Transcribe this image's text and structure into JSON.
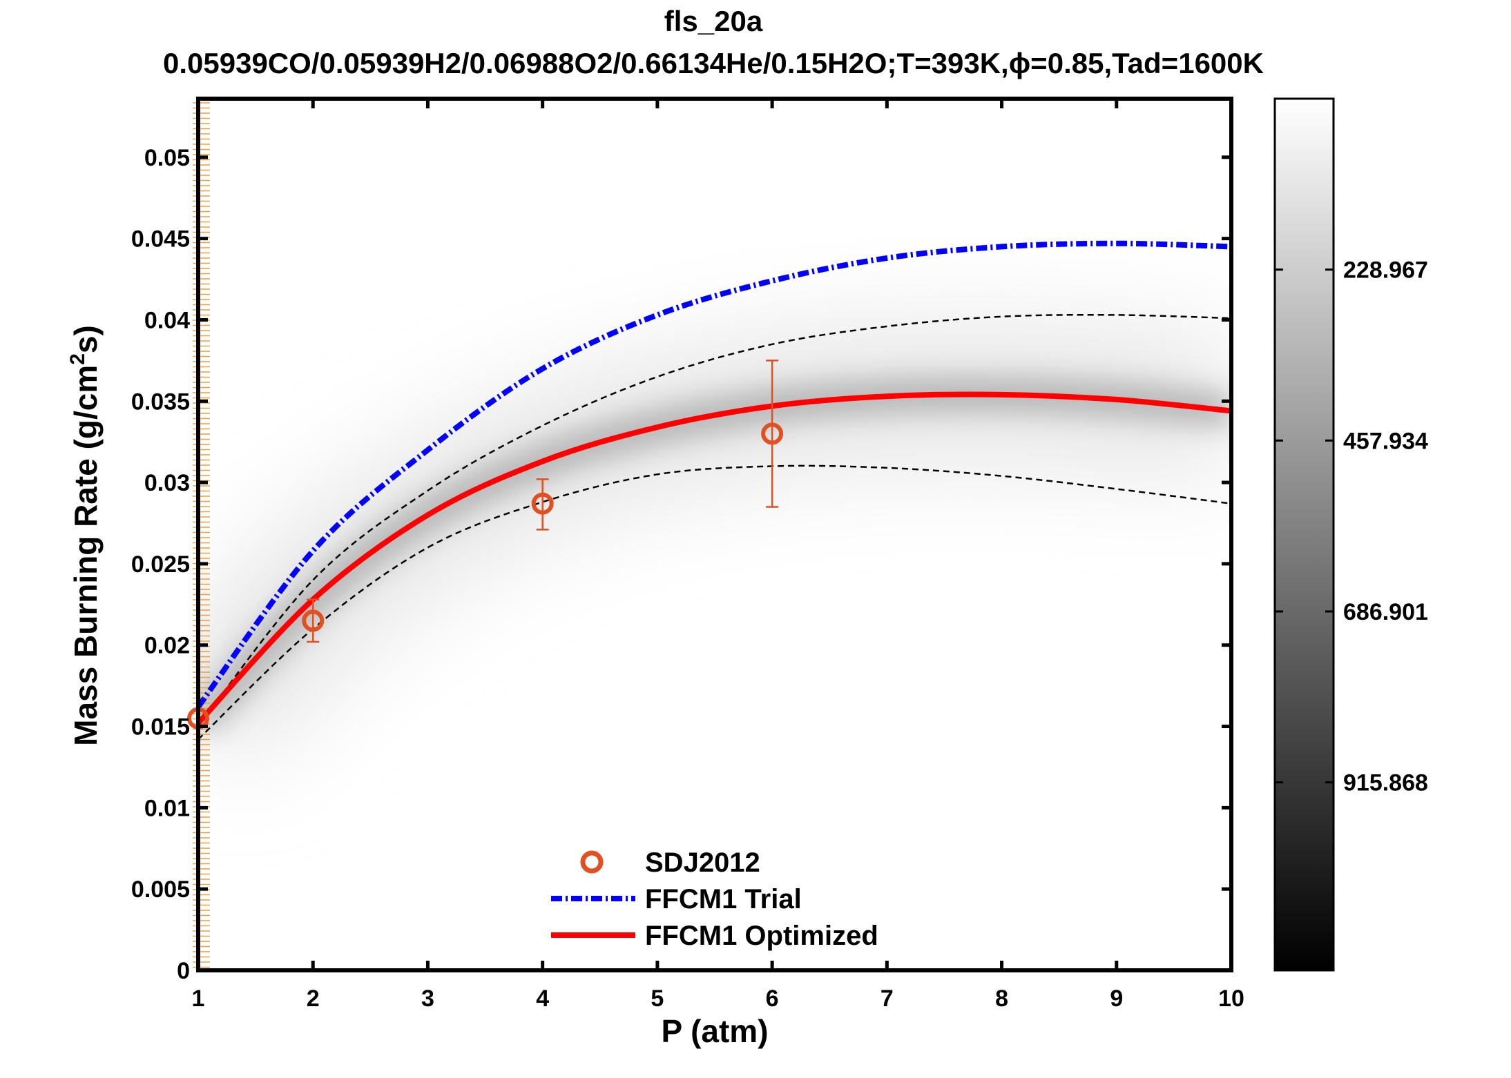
{
  "chart_data": {
    "type": "line",
    "title": "fls_20a",
    "subtitle": "0.05939CO/0.05939H2/0.06988O2/0.66134He/0.15H2O;T=393K,ϕ=0.85,Tad=1600K",
    "xlabel": "P (atm)",
    "ylabel": {
      "main": "Mass Burning Rate (g/cm",
      "sup": "2",
      "tail": "s)"
    },
    "xlim": [
      1,
      10
    ],
    "ylim": [
      0,
      0.0536
    ],
    "xticks": [
      "1",
      "2",
      "3",
      "4",
      "5",
      "6",
      "7",
      "8",
      "9",
      "10"
    ],
    "yticks": [
      {
        "v": 0,
        "label": "0"
      },
      {
        "v": 0.005,
        "label": "0.005"
      },
      {
        "v": 0.01,
        "label": "0.01"
      },
      {
        "v": 0.015,
        "label": "0.015"
      },
      {
        "v": 0.02,
        "label": "0.02"
      },
      {
        "v": 0.025,
        "label": "0.025"
      },
      {
        "v": 0.03,
        "label": "0.03"
      },
      {
        "v": 0.035,
        "label": "0.035"
      },
      {
        "v": 0.04,
        "label": "0.04"
      },
      {
        "v": 0.045,
        "label": "0.045"
      },
      {
        "v": 0.05,
        "label": "0.05"
      }
    ],
    "grid": false,
    "legend_position": "bottom-center",
    "x": [
      1,
      2,
      3,
      4,
      5,
      6,
      7,
      8,
      9,
      10
    ],
    "series": [
      {
        "name": "FFCM1 Trial",
        "color": "#0000ff",
        "style": "dash-dot",
        "values": [
          0.0162,
          0.0258,
          0.032,
          0.037,
          0.0403,
          0.0424,
          0.0438,
          0.0445,
          0.0447,
          0.0445
        ]
      },
      {
        "name": "FFCM1 Optimized",
        "color": "#ff0000",
        "style": "solid",
        "values": [
          0.0152,
          0.0228,
          0.028,
          0.0313,
          0.0334,
          0.0347,
          0.0353,
          0.0354,
          0.0351,
          0.0344
        ]
      },
      {
        "color": "#000000",
        "style": "dashed",
        "values": [
          0.015,
          0.024,
          0.0295,
          0.0335,
          0.0365,
          0.0385,
          0.0396,
          0.0402,
          0.0403,
          0.0401
        ]
      },
      {
        "color": "#000000",
        "style": "dashed",
        "values": [
          0.0142,
          0.021,
          0.026,
          0.0288,
          0.0305,
          0.031,
          0.0309,
          0.0304,
          0.0296,
          0.0287
        ]
      }
    ],
    "points": {
      "name": "SDJ2012",
      "color": "#e05020",
      "marker": "circle",
      "data": [
        {
          "x": 1,
          "y": 0.0155,
          "lo": 0.0155,
          "hi": 0.0155
        },
        {
          "x": 2,
          "y": 0.0215,
          "lo": 0.0202,
          "hi": 0.0228
        },
        {
          "x": 4,
          "y": 0.0287,
          "lo": 0.0271,
          "hi": 0.0302
        },
        {
          "x": 6,
          "y": 0.033,
          "lo": 0.0285,
          "hi": 0.0375
        }
      ]
    },
    "colorbar": {
      "range": [
        0,
        1167.7
      ],
      "reversed": true,
      "colormap": "gray",
      "ticks": [
        {
          "v": 228.967,
          "label": "228.967"
        },
        {
          "v": 457.934,
          "label": "457.934"
        },
        {
          "v": 686.901,
          "label": "686.901"
        },
        {
          "v": 915.868,
          "label": "915.868"
        }
      ]
    }
  }
}
